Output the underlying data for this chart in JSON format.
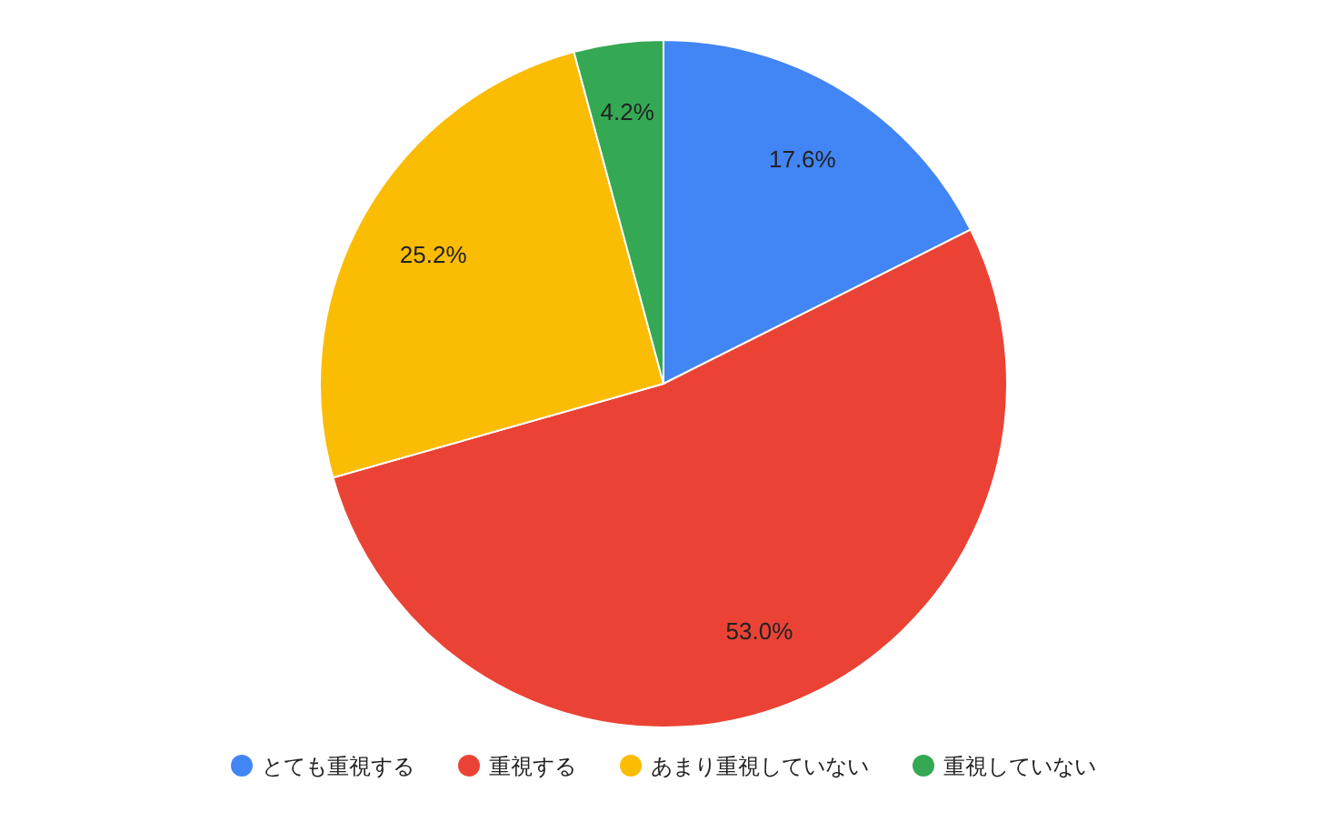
{
  "chart_data": {
    "type": "pie",
    "categories": [
      "とても重視する",
      "重視する",
      "あまり重視していない",
      "重視していない"
    ],
    "values": [
      17.6,
      53.0,
      25.2,
      4.2
    ],
    "colors": [
      "#4285f4",
      "#ea4335",
      "#fbbc04",
      "#34a853"
    ],
    "value_labels": [
      "17.6%",
      "53.0%",
      "25.2%",
      "4.2%"
    ],
    "legend": "bottom"
  }
}
